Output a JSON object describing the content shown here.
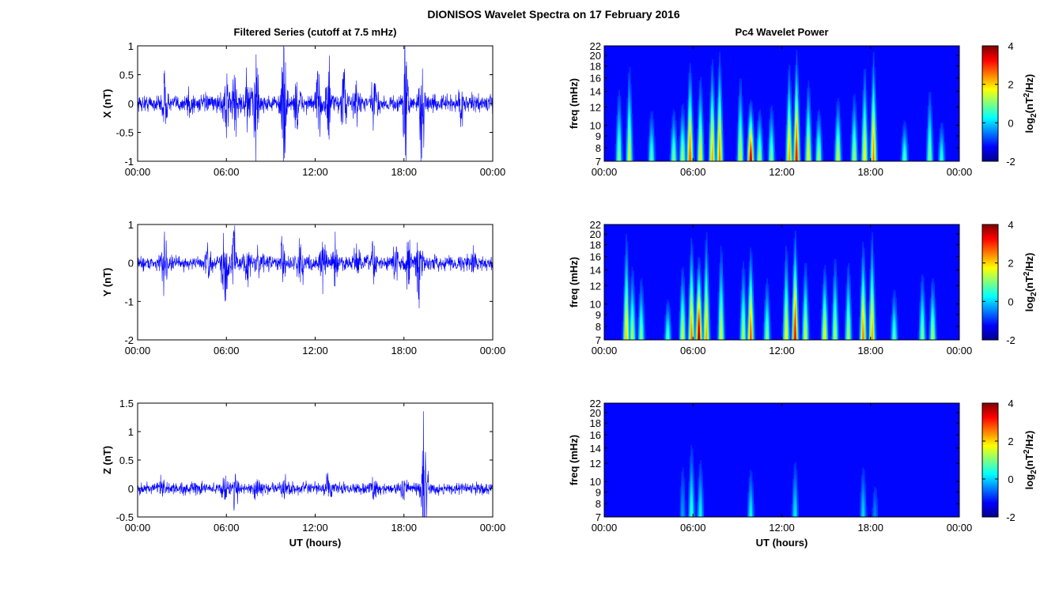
{
  "title": "DIONISOS Wavelet Spectra on 17 February 2016",
  "colors": {
    "series": "#0000ff",
    "colormap": "jet",
    "background": "#ffffff"
  },
  "chart_data": [
    {
      "type": "line",
      "title": "Filtered Series (cutoff at 7.5 mHz)",
      "xlabel": "",
      "ylabel": "X (nT)",
      "xlim": [
        0,
        24
      ],
      "ylim": [
        -1,
        1
      ],
      "xticks": [
        "00:00",
        "06:00",
        "12:00",
        "18:00",
        "00:00"
      ],
      "yticks": [
        -1,
        -0.5,
        0,
        0.5,
        1
      ],
      "noise_amplitude": 0.07,
      "bursts": [
        {
          "t": 1.8,
          "amp": 0.35
        },
        {
          "t": 3.5,
          "amp": 0.25
        },
        {
          "t": 6.0,
          "amp": 0.6
        },
        {
          "t": 6.6,
          "amp": 0.45
        },
        {
          "t": 7.4,
          "amp": 0.5
        },
        {
          "t": 8.0,
          "amp": 0.85
        },
        {
          "t": 9.9,
          "amp": 0.95
        },
        {
          "t": 10.8,
          "amp": 0.45
        },
        {
          "t": 12.2,
          "amp": 0.45
        },
        {
          "t": 12.9,
          "amp": 0.55
        },
        {
          "t": 13.9,
          "amp": 0.5
        },
        {
          "t": 14.8,
          "amp": 0.4
        },
        {
          "t": 16.0,
          "amp": 0.35
        },
        {
          "t": 18.1,
          "amp": 0.9
        },
        {
          "t": 19.2,
          "amp": 0.95
        },
        {
          "t": 21.8,
          "amp": 0.25
        }
      ]
    },
    {
      "type": "heatmap",
      "title": "Pc4 Wavelet Power",
      "xlabel": "",
      "ylabel": "freq (mHz)",
      "xlim": [
        0,
        24
      ],
      "ylim": [
        7,
        22
      ],
      "xticks": [
        "00:00",
        "06:00",
        "12:00",
        "18:00",
        "00:00"
      ],
      "yticks": [
        7,
        8,
        9,
        10,
        12,
        14,
        16,
        18,
        20,
        22
      ],
      "yscale": "log",
      "colorbar": {
        "label": "log2(nT2/Hz)",
        "ticks": [
          -2,
          0,
          2,
          4
        ],
        "range": [
          -2,
          4
        ]
      },
      "events": [
        {
          "t": 1.0,
          "p": 0.45,
          "h": 0.7
        },
        {
          "t": 1.7,
          "p": 0.55,
          "h": 0.9
        },
        {
          "t": 3.2,
          "p": 0.4,
          "h": 0.5
        },
        {
          "t": 4.7,
          "p": 0.45,
          "h": 0.5
        },
        {
          "t": 5.3,
          "p": 0.5,
          "h": 0.55
        },
        {
          "t": 5.8,
          "p": 0.8,
          "h": 0.9
        },
        {
          "t": 6.5,
          "p": 0.6,
          "h": 0.8
        },
        {
          "t": 7.3,
          "p": 0.7,
          "h": 0.95
        },
        {
          "t": 7.8,
          "p": 0.75,
          "h": 1.0
        },
        {
          "t": 9.2,
          "p": 0.55,
          "h": 0.8
        },
        {
          "t": 9.9,
          "p": 0.95,
          "h": 0.55
        },
        {
          "t": 10.5,
          "p": 0.5,
          "h": 0.5
        },
        {
          "t": 11.3,
          "p": 0.45,
          "h": 0.55
        },
        {
          "t": 12.5,
          "p": 0.7,
          "h": 0.9
        },
        {
          "t": 13.0,
          "p": 0.9,
          "h": 1.0
        },
        {
          "t": 13.8,
          "p": 0.6,
          "h": 0.75
        },
        {
          "t": 14.5,
          "p": 0.5,
          "h": 0.5
        },
        {
          "t": 15.8,
          "p": 0.55,
          "h": 0.6
        },
        {
          "t": 16.9,
          "p": 0.5,
          "h": 0.65
        },
        {
          "t": 17.6,
          "p": 0.6,
          "h": 0.9
        },
        {
          "t": 18.2,
          "p": 0.75,
          "h": 1.0
        },
        {
          "t": 20.3,
          "p": 0.4,
          "h": 0.4
        },
        {
          "t": 22.0,
          "p": 0.45,
          "h": 0.7
        },
        {
          "t": 22.8,
          "p": 0.35,
          "h": 0.4
        }
      ]
    },
    {
      "type": "line",
      "title": "",
      "xlabel": "",
      "ylabel": "Y (nT)",
      "xlim": [
        0,
        24
      ],
      "ylim": [
        -2,
        1
      ],
      "xticks": [
        "00:00",
        "06:00",
        "12:00",
        "18:00",
        "00:00"
      ],
      "yticks": [
        -2,
        -1,
        0,
        1
      ],
      "noise_amplitude": 0.09,
      "bursts": [
        {
          "t": 1.8,
          "amp": 0.55
        },
        {
          "t": 4.8,
          "amp": 0.35
        },
        {
          "t": 5.9,
          "amp": 1.0
        },
        {
          "t": 6.5,
          "amp": 0.7
        },
        {
          "t": 7.4,
          "amp": 0.45
        },
        {
          "t": 8.2,
          "amp": 0.4
        },
        {
          "t": 9.8,
          "amp": 0.5
        },
        {
          "t": 11.0,
          "amp": 0.5
        },
        {
          "t": 12.5,
          "amp": 0.55
        },
        {
          "t": 13.3,
          "amp": 0.6
        },
        {
          "t": 14.8,
          "amp": 0.5
        },
        {
          "t": 16.0,
          "amp": 0.45
        },
        {
          "t": 17.5,
          "amp": 0.4
        },
        {
          "t": 18.3,
          "amp": 0.55
        },
        {
          "t": 19.0,
          "amp": 0.95
        },
        {
          "t": 22.7,
          "amp": 0.25
        }
      ]
    },
    {
      "type": "heatmap",
      "title": "",
      "xlabel": "",
      "ylabel": "freq (mHz)",
      "xlim": [
        0,
        24
      ],
      "ylim": [
        7,
        22
      ],
      "xticks": [
        "00:00",
        "06:00",
        "12:00",
        "18:00",
        "00:00"
      ],
      "yticks": [
        7,
        8,
        9,
        10,
        12,
        14,
        16,
        18,
        20,
        22
      ],
      "yscale": "log",
      "colorbar": {
        "label": "log2(nT2/Hz)",
        "ticks": [
          -2,
          0,
          2,
          4
        ],
        "range": [
          -2,
          4
        ]
      },
      "events": [
        {
          "t": 1.5,
          "p": 0.65,
          "h": 1.0
        },
        {
          "t": 1.9,
          "p": 0.5,
          "h": 0.7
        },
        {
          "t": 2.5,
          "p": 0.45,
          "h": 0.6
        },
        {
          "t": 4.3,
          "p": 0.4,
          "h": 0.4
        },
        {
          "t": 5.3,
          "p": 0.55,
          "h": 0.7
        },
        {
          "t": 5.9,
          "p": 0.75,
          "h": 0.95
        },
        {
          "t": 6.4,
          "p": 1.0,
          "h": 0.75
        },
        {
          "t": 6.9,
          "p": 0.7,
          "h": 1.0
        },
        {
          "t": 7.9,
          "p": 0.55,
          "h": 0.9
        },
        {
          "t": 9.4,
          "p": 0.5,
          "h": 0.75
        },
        {
          "t": 9.9,
          "p": 0.8,
          "h": 0.85
        },
        {
          "t": 11.0,
          "p": 0.45,
          "h": 0.6
        },
        {
          "t": 12.3,
          "p": 0.6,
          "h": 0.9
        },
        {
          "t": 12.9,
          "p": 0.9,
          "h": 1.0
        },
        {
          "t": 13.6,
          "p": 0.55,
          "h": 0.75
        },
        {
          "t": 14.9,
          "p": 0.6,
          "h": 0.7
        },
        {
          "t": 15.6,
          "p": 0.5,
          "h": 0.8
        },
        {
          "t": 16.5,
          "p": 0.5,
          "h": 0.75
        },
        {
          "t": 17.5,
          "p": 0.75,
          "h": 0.9
        },
        {
          "t": 18.1,
          "p": 0.7,
          "h": 1.0
        },
        {
          "t": 19.6,
          "p": 0.4,
          "h": 0.5
        },
        {
          "t": 21.5,
          "p": 0.45,
          "h": 0.65
        },
        {
          "t": 22.2,
          "p": 0.5,
          "h": 0.6
        }
      ]
    },
    {
      "type": "line",
      "title": "",
      "xlabel": "UT (hours)",
      "ylabel": "Z (nT)",
      "xlim": [
        0,
        24
      ],
      "ylim": [
        -0.5,
        1.5
      ],
      "xticks": [
        "00:00",
        "06:00",
        "12:00",
        "18:00",
        "00:00"
      ],
      "yticks": [
        -0.5,
        0,
        0.5,
        1,
        1.5
      ],
      "noise_amplitude": 0.05,
      "bursts": [
        {
          "t": 1.6,
          "amp": 0.12
        },
        {
          "t": 5.9,
          "amp": 0.18
        },
        {
          "t": 6.6,
          "amp": 0.25
        },
        {
          "t": 8.0,
          "amp": 0.12
        },
        {
          "t": 9.9,
          "amp": 0.15
        },
        {
          "t": 12.9,
          "amp": 0.14
        },
        {
          "t": 16.0,
          "amp": 0.12
        },
        {
          "t": 18.0,
          "amp": 0.13
        },
        {
          "t": 19.4,
          "amp": 1.0
        }
      ]
    },
    {
      "type": "heatmap",
      "title": "",
      "xlabel": "UT (hours)",
      "ylabel": "freq (mHz)",
      "xlim": [
        0,
        24
      ],
      "ylim": [
        7,
        22
      ],
      "xticks": [
        "00:00",
        "06:00",
        "12:00",
        "18:00",
        "00:00"
      ],
      "yticks": [
        7,
        8,
        9,
        10,
        12,
        14,
        16,
        18,
        20,
        22
      ],
      "yscale": "log",
      "colorbar": {
        "label": "log2(nT2/Hz)",
        "ticks": [
          -2,
          0,
          2,
          4
        ],
        "range": [
          -2,
          4
        ]
      },
      "events": [
        {
          "t": 5.3,
          "p": 0.18,
          "h": 0.6
        },
        {
          "t": 5.9,
          "p": 0.35,
          "h": 0.75
        },
        {
          "t": 6.5,
          "p": 0.3,
          "h": 0.6
        },
        {
          "t": 9.9,
          "p": 0.3,
          "h": 0.5
        },
        {
          "t": 12.9,
          "p": 0.28,
          "h": 0.6
        },
        {
          "t": 17.5,
          "p": 0.25,
          "h": 0.55
        },
        {
          "t": 18.3,
          "p": 0.15,
          "h": 0.4
        }
      ]
    }
  ]
}
